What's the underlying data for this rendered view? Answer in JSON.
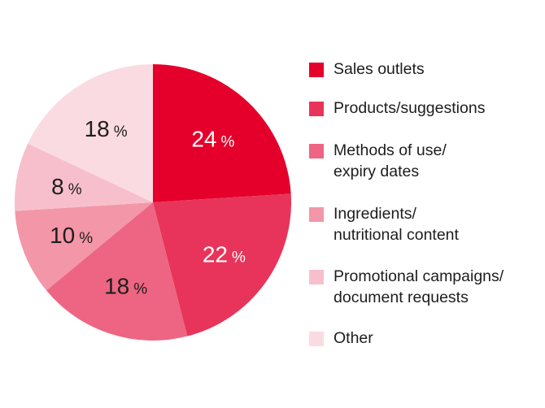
{
  "chart_data": {
    "type": "pie",
    "title": "",
    "categories": [
      "Sales outlets",
      "Products/suggestions",
      "Methods of use/ expiry dates",
      "Ingredients/ nutritional content",
      "Promotional campaigns/ document requests",
      "Other"
    ],
    "values": [
      24,
      22,
      18,
      10,
      8,
      18
    ],
    "unit": "%",
    "colors": [
      "#e4002b",
      "#e8345a",
      "#ed6582",
      "#f396a8",
      "#f7bfcc",
      "#fbdbe2"
    ],
    "label_colors": [
      "#ffffff",
      "#ffffff",
      "#1d1d1d",
      "#1d1d1d",
      "#1d1d1d",
      "#1d1d1d"
    ],
    "legend": {
      "placement": "right",
      "entries": [
        [
          "Sales outlets"
        ],
        [
          "Products/suggestions"
        ],
        [
          "Methods of use/",
          "expiry dates"
        ],
        [
          "Ingredients/",
          "nutritional content"
        ],
        [
          "Promotional campaigns/",
          "document requests"
        ],
        [
          "Other"
        ]
      ]
    },
    "start_angle_deg": 0,
    "direction": "clockwise",
    "grid": false
  }
}
